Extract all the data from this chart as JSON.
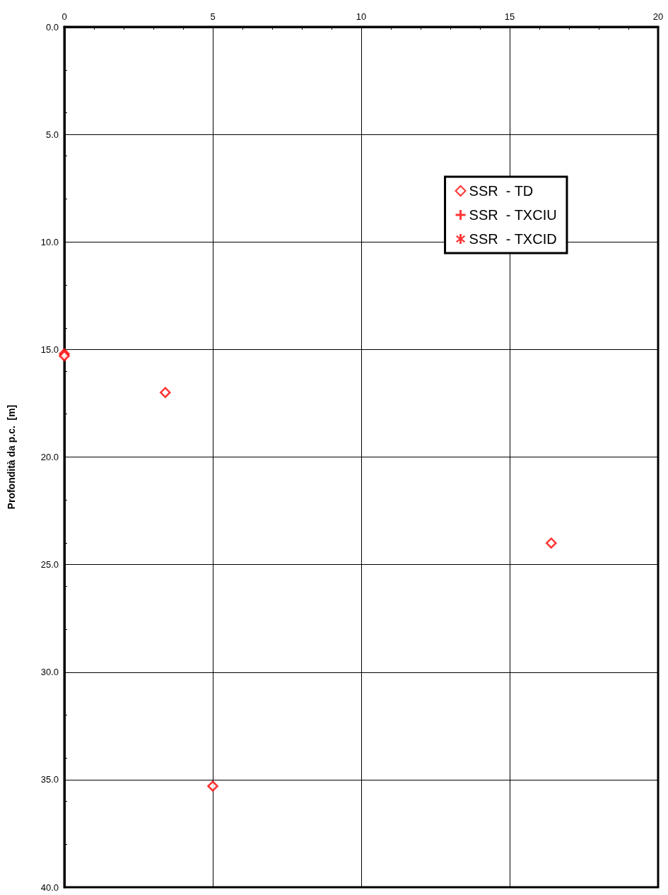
{
  "chart_data": {
    "type": "scatter",
    "ylabel": "Profondità da p.c.  [m]",
    "xlim": [
      0,
      20
    ],
    "xticks": [
      0,
      5,
      10,
      15,
      20
    ],
    "ylim": [
      40,
      0
    ],
    "yticks": [
      {
        "value": 0,
        "label": "0.0"
      },
      {
        "value": 5,
        "label": "5.0"
      },
      {
        "value": 10,
        "label": "10.0"
      },
      {
        "value": 15,
        "label": "15.0"
      },
      {
        "value": 20,
        "label": "20.0"
      },
      {
        "value": 25,
        "label": "25.0"
      },
      {
        "value": 30,
        "label": "30.0"
      },
      {
        "value": 35,
        "label": "35.0"
      },
      {
        "value": 40,
        "label": "40.0"
      }
    ],
    "grid": true,
    "legend": "top right",
    "series": [
      {
        "name": "SSR  - TD",
        "color": "#ff0000",
        "marker": "diamond",
        "x": [
          0,
          0,
          3.4,
          16.4,
          5.0
        ],
        "values": [
          15.2,
          15.3,
          17.0,
          24.0,
          35.3
        ]
      },
      {
        "name": "SSR  - TXCIU",
        "color": "#ff0000",
        "marker": "cross"
      },
      {
        "name": "SSR  - TXCID",
        "color": "#ff0000",
        "marker": "star"
      }
    ]
  }
}
